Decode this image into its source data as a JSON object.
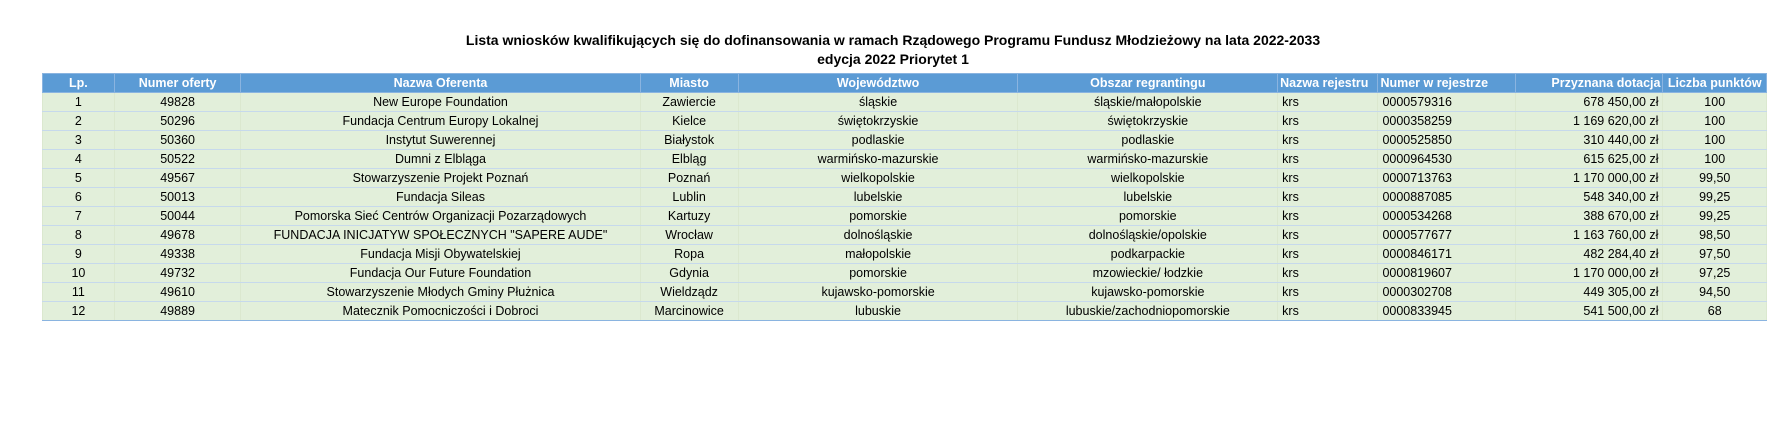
{
  "title": {
    "line1": "Lista wniosków kwalifikujących się do dofinansowania w ramach Rządowego Programu Fundusz Młodzieżowy na lata 2022-2033",
    "line2": "edycja 2022 Priorytet 1"
  },
  "headers": [
    "Lp.",
    "Numer oferty",
    "Nazwa Oferenta",
    "Miasto",
    "Województwo",
    "Obszar regrantingu",
    "Nazwa rejestru",
    "Numer w rejestrze",
    "Przyznana dotacja",
    "Liczba punktów"
  ],
  "rows": [
    [
      "1",
      "49828",
      "New Europe Foundation",
      "Zawiercie",
      "śląskie",
      "śląskie/małopolskie",
      "krs",
      "0000579316",
      "678 450,00 zł",
      "100"
    ],
    [
      "2",
      "50296",
      "Fundacja Centrum Europy Lokalnej",
      "Kielce",
      "świętokrzyskie",
      "świętokrzyskie",
      "krs",
      "0000358259",
      "1 169 620,00 zł",
      "100"
    ],
    [
      "3",
      "50360",
      "Instytut Suwerennej",
      "Białystok",
      "podlaskie",
      "podlaskie",
      "krs",
      "0000525850",
      "310 440,00 zł",
      "100"
    ],
    [
      "4",
      "50522",
      "Dumni z Elbląga",
      "Elbląg",
      "warmińsko-mazurskie",
      "warmińsko-mazurskie",
      "krs",
      "0000964530",
      "615 625,00 zł",
      "100"
    ],
    [
      "5",
      "49567",
      "Stowarzyszenie Projekt Poznań",
      "Poznań",
      "wielkopolskie",
      "wielkopolskie",
      "krs",
      "0000713763",
      "1 170 000,00 zł",
      "99,50"
    ],
    [
      "6",
      "50013",
      "Fundacja Sileas",
      "Lublin",
      "lubelskie",
      "lubelskie",
      "krs",
      "0000887085",
      "548 340,00 zł",
      "99,25"
    ],
    [
      "7",
      "50044",
      "Pomorska Sieć Centrów Organizacji Pozarządowych",
      "Kartuzy",
      "pomorskie",
      "pomorskie",
      "krs",
      "0000534268",
      "388 670,00 zł",
      "99,25"
    ],
    [
      "8",
      "49678",
      "FUNDACJA INICJATYW SPOŁECZNYCH \"SAPERE AUDE\"",
      "Wrocław",
      "dolnośląskie",
      "dolnośląskie/opolskie",
      "krs",
      "0000577677",
      "1 163 760,00 zł",
      "98,50"
    ],
    [
      "9",
      "49338",
      "Fundacja Misji Obywatelskiej",
      "Ropa",
      "małopolskie",
      "podkarpackie",
      "krs",
      "0000846171",
      "482 284,40 zł",
      "97,50"
    ],
    [
      "10",
      "49732",
      "Fundacja Our Future Foundation",
      "Gdynia",
      "pomorskie",
      "mzowieckie/ łodzkie",
      "krs",
      "0000819607",
      "1 170 000,00 zł",
      "97,25"
    ],
    [
      "11",
      "49610",
      "Stowarzyszenie Młodych Gminy Płużnica",
      "Wieldządz",
      "kujawsko-pomorskie",
      "kujawsko-pomorskie",
      "krs",
      "0000302708",
      "449 305,00 zł",
      "94,50"
    ],
    [
      "12",
      "49889",
      "Matecznik Pomocniczości i Dobroci",
      "Marcinowice",
      "lubuskie",
      "lubuskie/zachodniopomorskie",
      "krs",
      "0000833945",
      "541 500,00 zł",
      "68"
    ]
  ]
}
